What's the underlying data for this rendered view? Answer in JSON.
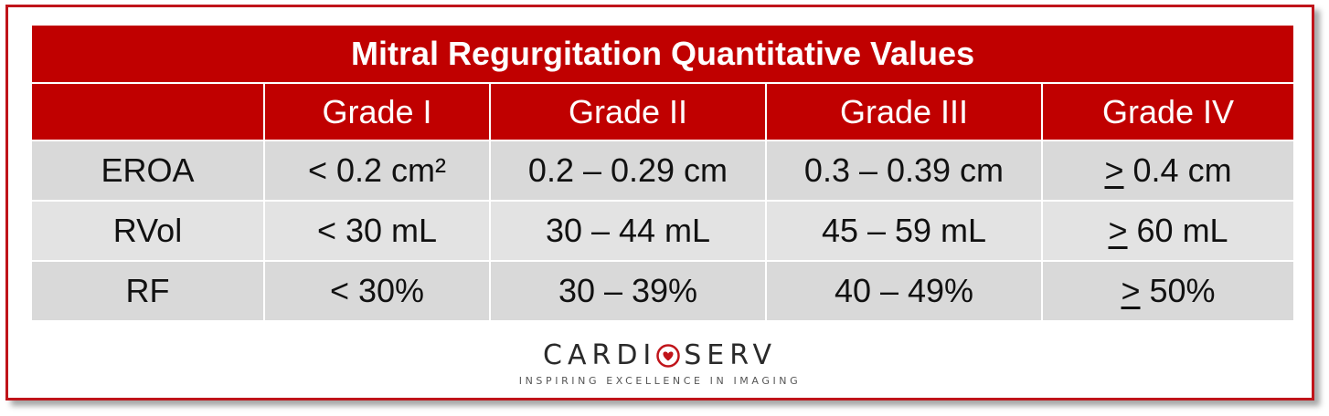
{
  "title": "Mitral Regurgitation Quantitative Values",
  "columns": [
    "",
    "Grade I",
    "Grade II",
    "Grade III",
    "Grade IV"
  ],
  "rows": [
    {
      "label": "EROA",
      "cells": [
        "< 0.2 cm²",
        "0.2 – 0.29 cm",
        "0.3 – 0.39 cm"
      ],
      "grade4": {
        "sym": ">",
        "rest": " 0.4 cm"
      }
    },
    {
      "label": "RVol",
      "cells": [
        "< 30 mL",
        "30 – 44 mL",
        "45 – 59 mL"
      ],
      "grade4": {
        "sym": ">",
        "rest": " 60 mL"
      }
    },
    {
      "label": "RF",
      "cells": [
        "< 30%",
        "30 – 39%",
        "40 – 49%"
      ],
      "grade4": {
        "sym": ">",
        "rest": " 50%"
      }
    }
  ],
  "logo": {
    "word_left": "CARDI",
    "word_right": "SERV",
    "tagline": "INSPIRING EXCELLENCE IN IMAGING"
  },
  "colors": {
    "header": "#c00000",
    "border": "#c0141a",
    "cell": "#d9d9d9"
  }
}
